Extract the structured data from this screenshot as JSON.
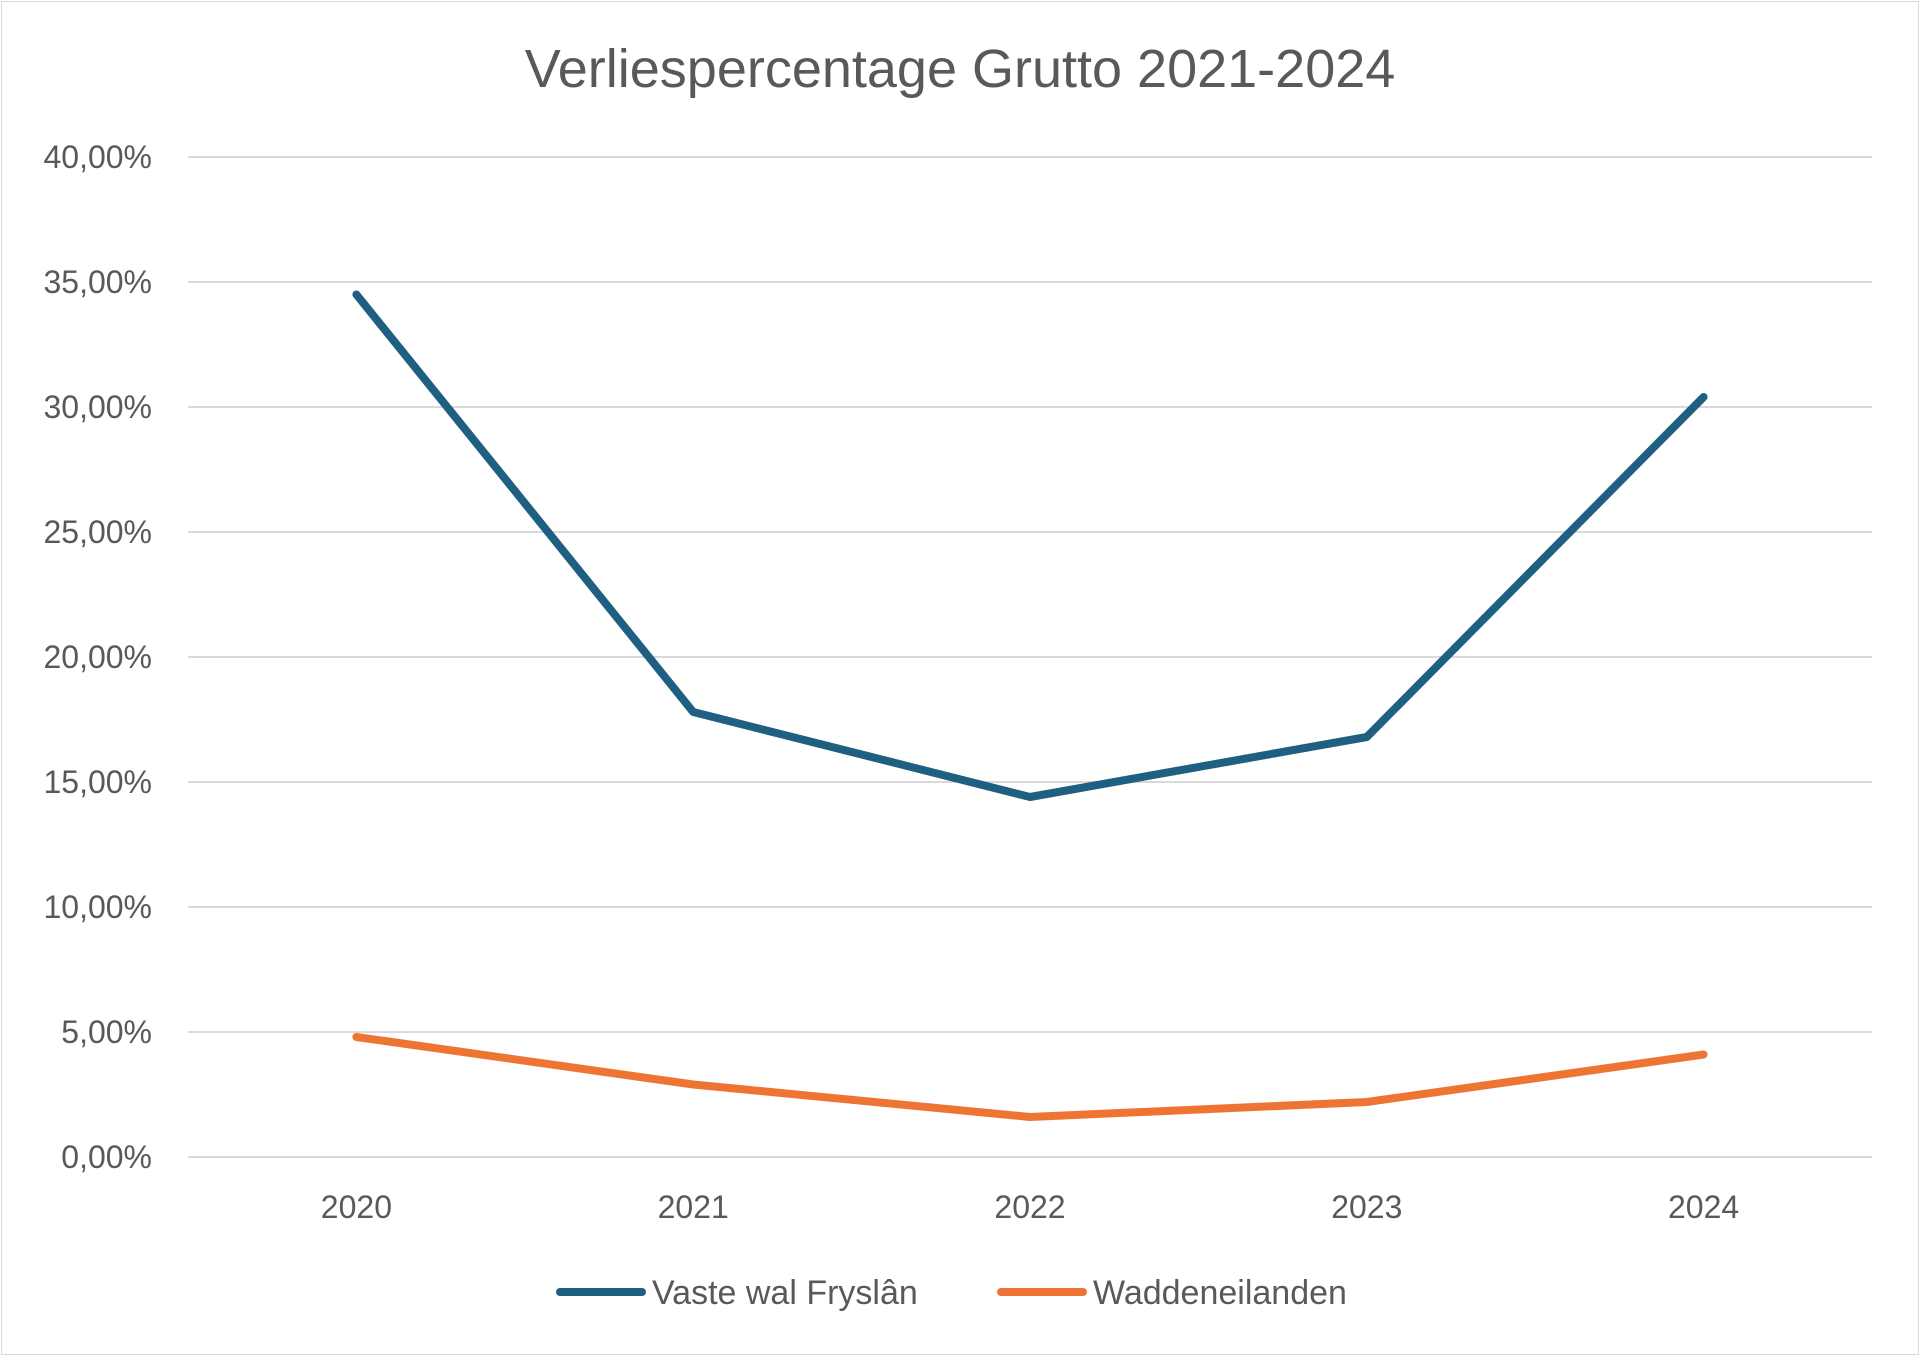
{
  "chart_data": {
    "type": "line",
    "title": "Verliespercentage Grutto 2021-2024",
    "xlabel": "",
    "ylabel": "",
    "categories": [
      "2020",
      "2021",
      "2022",
      "2023",
      "2024"
    ],
    "ylim": [
      0,
      0.4
    ],
    "yticks": [
      0,
      0.05,
      0.1,
      0.15,
      0.2,
      0.25,
      0.3,
      0.35,
      0.4
    ],
    "ytick_labels": [
      "0,00%",
      "5,00%",
      "10,00%",
      "15,00%",
      "20,00%",
      "25,00%",
      "30,00%",
      "35,00%",
      "40,00%"
    ],
    "grid": true,
    "legend": "bottom",
    "series": [
      {
        "name": "Vaste wal Fryslân",
        "color": "#1f5f82",
        "values": [
          0.345,
          0.178,
          0.144,
          0.168,
          0.304
        ]
      },
      {
        "name": "Waddeneilanden",
        "color": "#ed7433",
        "values": [
          0.048,
          0.029,
          0.016,
          0.022,
          0.041
        ]
      }
    ]
  }
}
